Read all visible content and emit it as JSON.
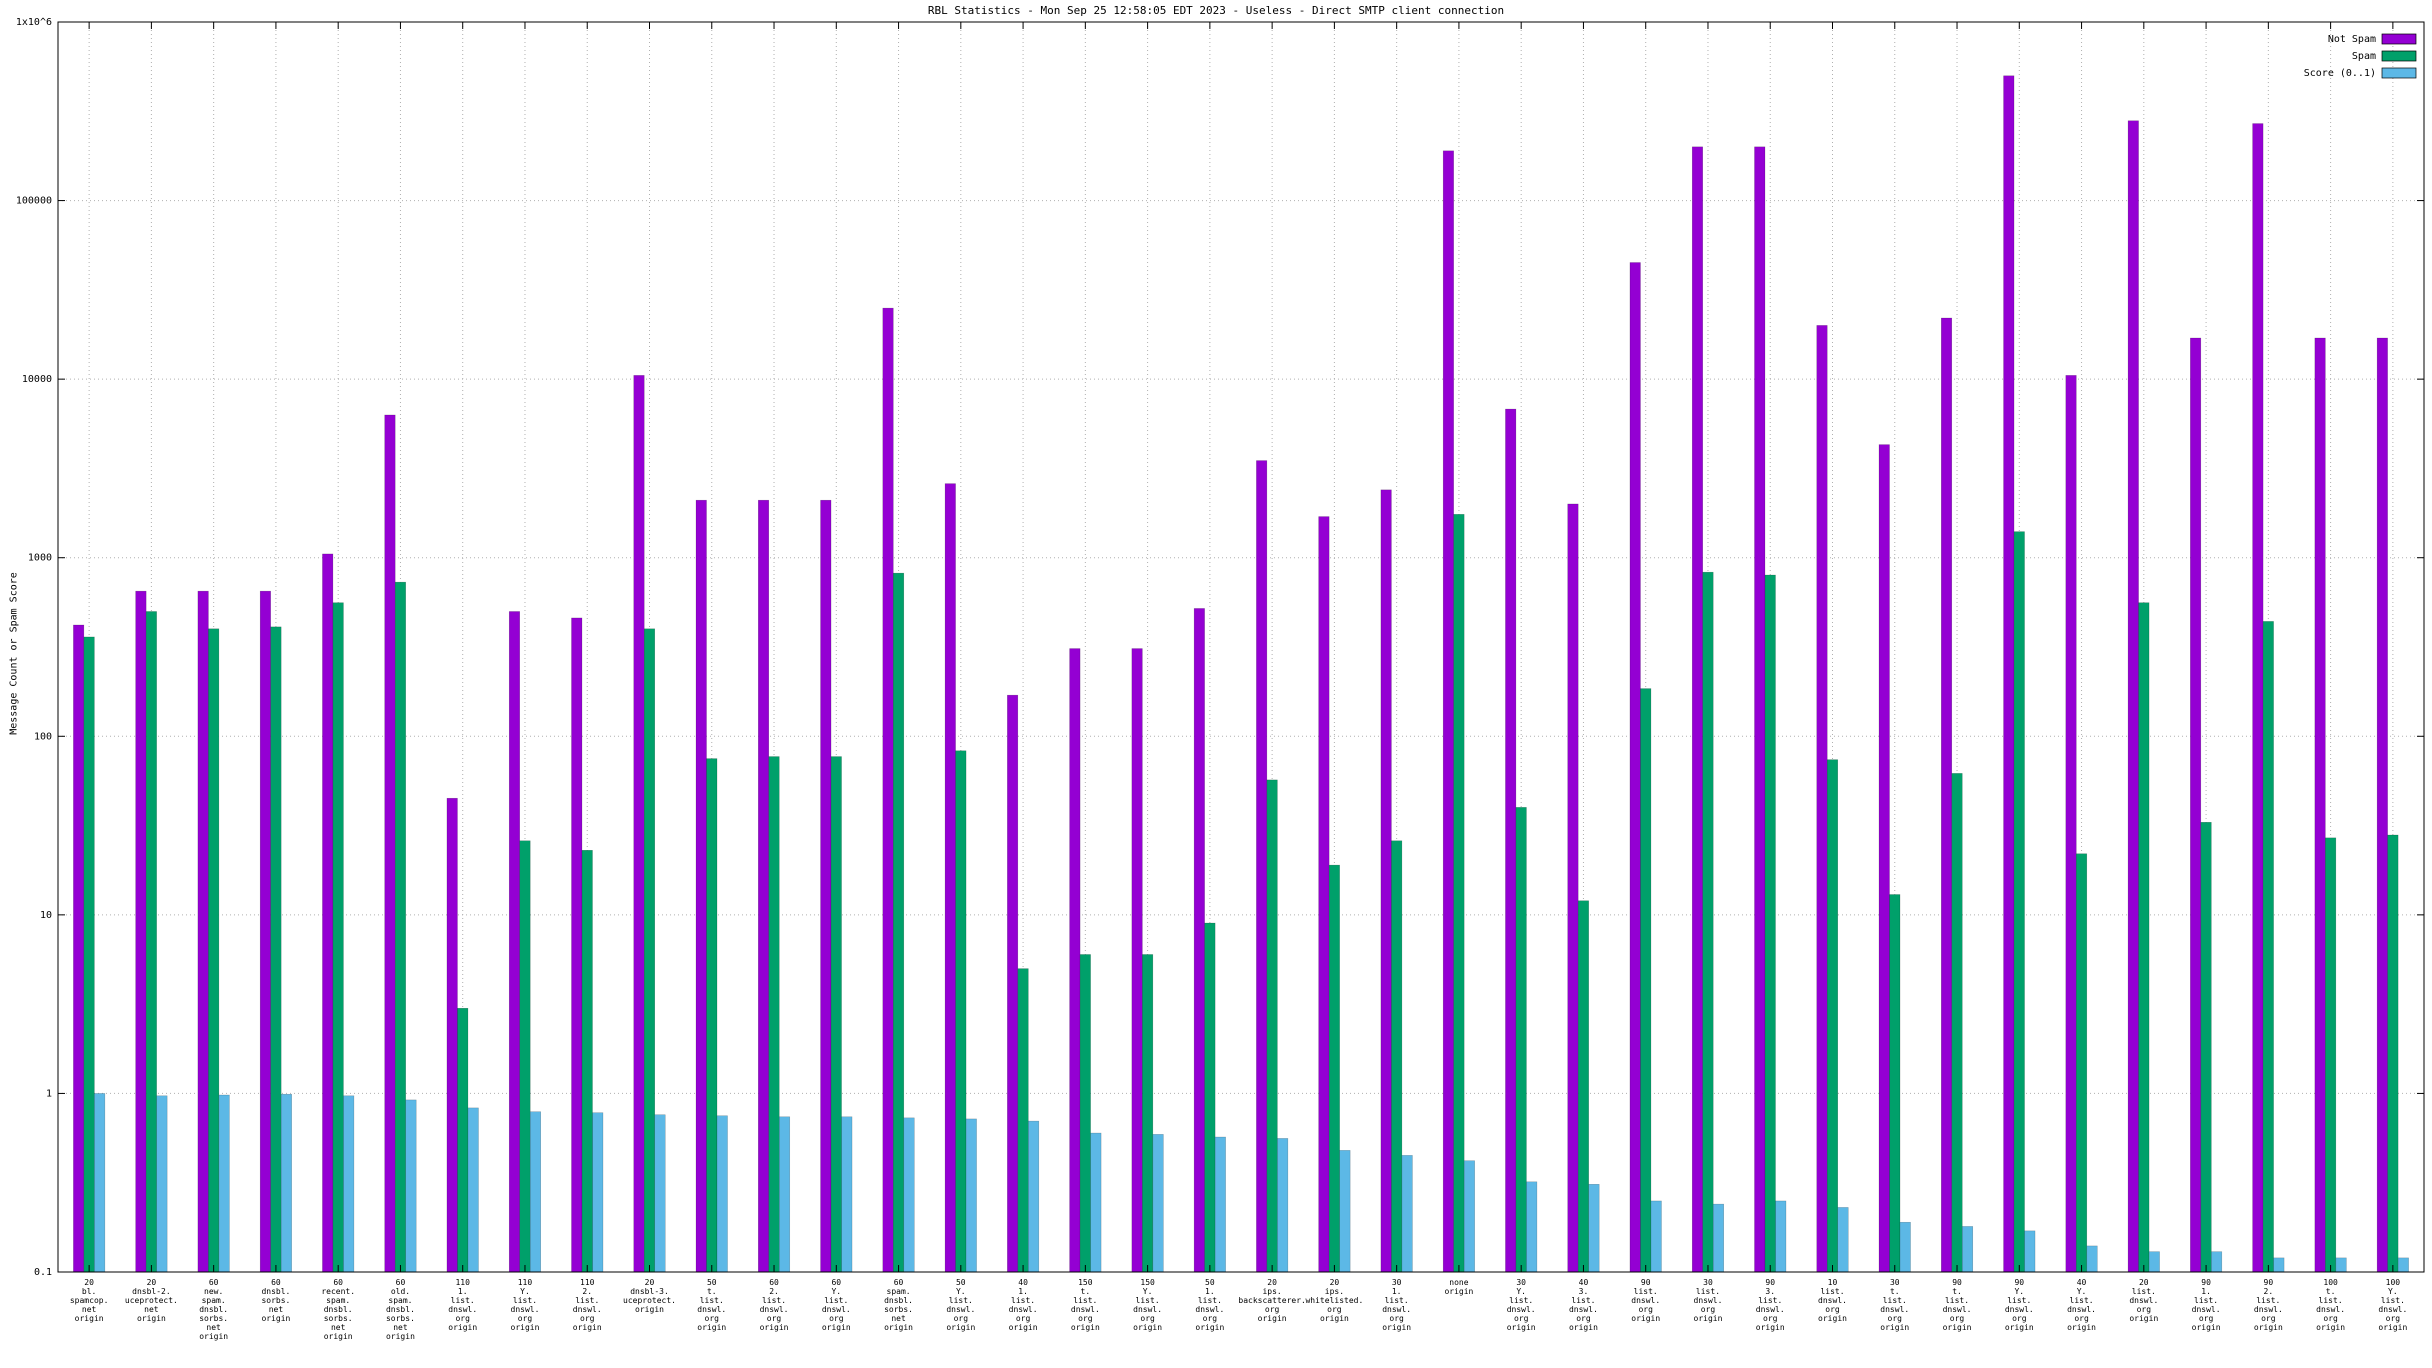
{
  "chart_data": {
    "type": "bar",
    "title": "RBL Statistics - Mon Sep 25 12:58:05 EDT 2023 - Useless - Direct SMTP client connection",
    "ylabel": "Message Count or Spam Score",
    "xlabel": "",
    "y_scale": "log",
    "ylim": [
      0.1,
      1000000
    ],
    "y_ticks": [
      "0.1",
      "1",
      "10",
      "100",
      "1000",
      "10000",
      "100000",
      "1x10^6"
    ],
    "grid": true,
    "legend_position": "top-right",
    "background_color": "#ffffff",
    "grid_color": "#b0b0b0",
    "categories": [
      [
        "20",
        "bl.",
        "spamcop.",
        "net",
        "origin"
      ],
      [
        "20",
        "dnsbl-2.",
        "uceprotect.",
        "net",
        "origin"
      ],
      [
        "60",
        "new.",
        "spam.",
        "dnsbl.",
        "sorbs.",
        "net",
        "origin"
      ],
      [
        "60",
        "dnsbl.",
        "sorbs.",
        "net",
        "origin"
      ],
      [
        "60",
        "recent.",
        "spam.",
        "dnsbl.",
        "sorbs.",
        "net",
        "origin"
      ],
      [
        "60",
        "old.",
        "spam.",
        "dnsbl.",
        "sorbs.",
        "net",
        "origin"
      ],
      [
        "110",
        "1.",
        "list.",
        "dnswl.",
        "org",
        "origin"
      ],
      [
        "110",
        "Y.",
        "list.",
        "dnswl.",
        "org",
        "origin"
      ],
      [
        "110",
        "2.",
        "list.",
        "dnswl.",
        "org",
        "origin"
      ],
      [
        "20",
        "dnsbl-3.",
        "uceprotect.",
        "origin"
      ],
      [
        "50",
        "t.",
        "list.",
        "dnswl.",
        "org",
        "origin"
      ],
      [
        "60",
        "2.",
        "list.",
        "dnswl.",
        "org",
        "origin"
      ],
      [
        "60",
        "Y.",
        "list.",
        "dnswl.",
        "org",
        "origin"
      ],
      [
        "60",
        "spam.",
        "dnsbl.",
        "sorbs.",
        "net",
        "origin"
      ],
      [
        "50",
        "Y.",
        "list.",
        "dnswl.",
        "org",
        "origin"
      ],
      [
        "40",
        "1.",
        "list.",
        "dnswl.",
        "org",
        "origin"
      ],
      [
        "150",
        "t.",
        "list.",
        "dnswl.",
        "org",
        "origin"
      ],
      [
        "150",
        "Y.",
        "list.",
        "dnswl.",
        "org",
        "origin"
      ],
      [
        "50",
        "1.",
        "list.",
        "dnswl.",
        "org",
        "origin"
      ],
      [
        "20",
        "ips.",
        "backscatterer.",
        "org",
        "origin"
      ],
      [
        "20",
        "ips.",
        "whitelisted.",
        "org",
        "origin"
      ],
      [
        "30",
        "1.",
        "list.",
        "dnswl.",
        "org",
        "origin"
      ],
      [
        "none",
        "origin"
      ],
      [
        "30",
        "Y.",
        "list.",
        "dnswl.",
        "org",
        "origin"
      ],
      [
        "40",
        "3.",
        "list.",
        "dnswl.",
        "org",
        "origin"
      ],
      [
        "90",
        "list.",
        "dnswl.",
        "org",
        "origin"
      ],
      [
        "30",
        "list.",
        "dnswl.",
        "org",
        "origin"
      ],
      [
        "90",
        "3.",
        "list.",
        "dnswl.",
        "org",
        "origin"
      ],
      [
        "10",
        "list.",
        "dnswl.",
        "org",
        "origin"
      ],
      [
        "30",
        "t.",
        "list.",
        "dnswl.",
        "org",
        "origin"
      ],
      [
        "90",
        "t.",
        "list.",
        "dnswl.",
        "org",
        "origin"
      ],
      [
        "90",
        "Y.",
        "list.",
        "dnswl.",
        "org",
        "origin"
      ],
      [
        "40",
        "Y.",
        "list.",
        "dnswl.",
        "org",
        "origin"
      ],
      [
        "20",
        "list.",
        "dnswl.",
        "org",
        "origin"
      ],
      [
        "90",
        "1.",
        "list.",
        "dnswl.",
        "org",
        "origin"
      ],
      [
        "90",
        "2.",
        "list.",
        "dnswl.",
        "org",
        "origin"
      ],
      [
        "100",
        "t.",
        "list.",
        "dnswl.",
        "org",
        "origin"
      ],
      [
        "100",
        "Y.",
        "list.",
        "dnswl.",
        "org",
        "origin"
      ]
    ],
    "series": [
      {
        "name": "Not Spam",
        "color": "#9400d3",
        "values": [
          420,
          650,
          650,
          650,
          1050,
          6300,
          45,
          500,
          460,
          10500,
          2100,
          2100,
          2100,
          25000,
          2600,
          170,
          310,
          310,
          520,
          3500,
          1700,
          2400,
          190000,
          6800,
          2000,
          45000,
          200000,
          200000,
          20000,
          4300,
          22000,
          500000,
          10500,
          280000,
          17000,
          270000,
          17000,
          17000
        ]
      },
      {
        "name": "Spam",
        "color": "#00a06a",
        "values": [
          360,
          500,
          400,
          410,
          560,
          730,
          3,
          26,
          23,
          400,
          75,
          77,
          77,
          820,
          83,
          5,
          6,
          6,
          9,
          57,
          19,
          26,
          1750,
          40,
          12,
          185,
          830,
          800,
          74,
          13,
          62,
          1400,
          22,
          560,
          33,
          440,
          27,
          28
        ]
      },
      {
        "name": "Score (0..1)",
        "color": "#5cb8e6",
        "values": [
          1.0,
          0.97,
          0.98,
          0.99,
          0.97,
          0.92,
          0.83,
          0.79,
          0.78,
          0.76,
          0.75,
          0.74,
          0.74,
          0.73,
          0.72,
          0.7,
          0.6,
          0.59,
          0.57,
          0.56,
          0.48,
          0.45,
          0.42,
          0.32,
          0.31,
          0.25,
          0.24,
          0.25,
          0.23,
          0.19,
          0.18,
          0.17,
          0.14,
          0.13,
          0.13,
          0.12,
          0.12,
          0.12
        ]
      }
    ]
  }
}
